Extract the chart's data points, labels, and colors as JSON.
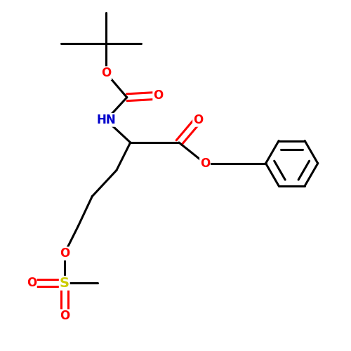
{
  "background_color": "#ffffff",
  "bond_color": "#000000",
  "bond_width": 2.2,
  "atom_colors": {
    "O": "#ff0000",
    "N": "#0000cc",
    "S": "#cccc00",
    "C": "#000000"
  },
  "font_size": 12,
  "figsize": [
    5.0,
    5.0
  ],
  "dpi": 100
}
